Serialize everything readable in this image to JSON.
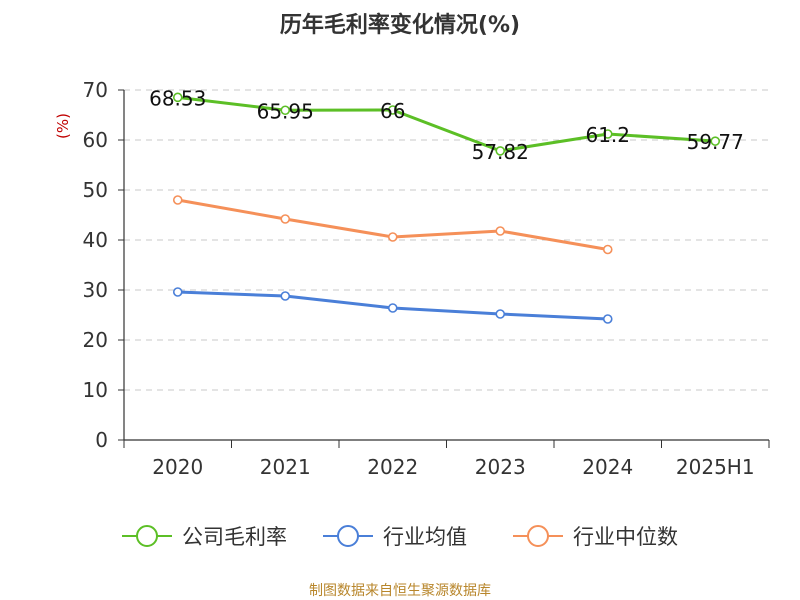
{
  "chart_data": {
    "type": "line",
    "title": "历年毛利率变化情况(%)",
    "ylabel": "(%)",
    "xlabel": "",
    "categories": [
      "2020",
      "2021",
      "2022",
      "2023",
      "2024",
      "2025H1"
    ],
    "ylim": [
      0,
      70
    ],
    "yticks": [
      0,
      10,
      20,
      30,
      40,
      50,
      60,
      70
    ],
    "grid": true,
    "legend_position": "bottom",
    "series": [
      {
        "name": "公司毛利率",
        "color": "#5cbf26",
        "values": [
          68.53,
          65.95,
          66,
          57.82,
          61.2,
          59.77
        ],
        "labels": [
          "68.53",
          "65.95",
          "66",
          "57.82",
          "61.2",
          "59.77"
        ]
      },
      {
        "name": "行业均值",
        "color": "#4a7fd8",
        "values": [
          29.6,
          28.8,
          26.4,
          25.2,
          24.2,
          null
        ]
      },
      {
        "name": "行业中位数",
        "color": "#f59059",
        "values": [
          48.0,
          44.2,
          40.6,
          41.8,
          38.1,
          null
        ]
      }
    ]
  },
  "source_text": "制图数据来自恒生聚源数据库"
}
